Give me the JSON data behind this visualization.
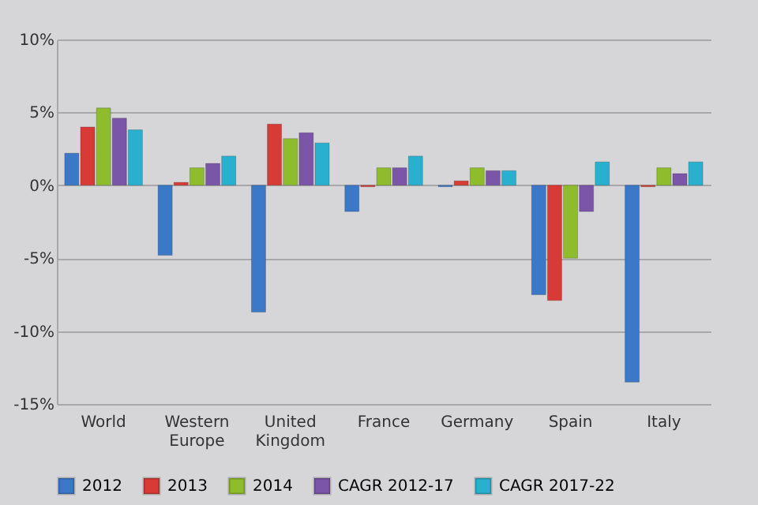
{
  "chart_data": {
    "type": "bar",
    "categories": [
      "World",
      "Western Europe",
      "United Kingdom",
      "France",
      "Germany",
      "Spain",
      "Italy"
    ],
    "series": [
      {
        "name": "2012",
        "color": "#3c78c8",
        "values": [
          2.2,
          -4.8,
          -8.7,
          -1.8,
          -0.1,
          -7.5,
          -13.5
        ]
      },
      {
        "name": "2013",
        "color": "#d83a35",
        "values": [
          4.0,
          0.2,
          4.2,
          -0.1,
          0.3,
          -7.9,
          -0.1
        ]
      },
      {
        "name": "2014",
        "color": "#8fbc2c",
        "values": [
          5.3,
          1.2,
          3.2,
          1.2,
          1.2,
          -5.0,
          1.2
        ]
      },
      {
        "name": "CAGR 2012-17",
        "color": "#7b55a8",
        "values": [
          4.6,
          1.5,
          3.6,
          1.2,
          1.0,
          -1.8,
          0.8
        ]
      },
      {
        "name": "CAGR 2017-22",
        "color": "#2ab0cf",
        "values": [
          3.8,
          2.0,
          2.9,
          2.0,
          1.0,
          1.6,
          1.6
        ]
      }
    ],
    "ylim": [
      -15,
      10
    ],
    "yticks": [
      {
        "value": -15,
        "label": "-15%"
      },
      {
        "value": -10,
        "label": "-10%"
      },
      {
        "value": -5,
        "label": "-5%"
      },
      {
        "value": 0,
        "label": "0%"
      },
      {
        "value": 5,
        "label": "5%"
      },
      {
        "value": 10,
        "label": "10%"
      }
    ],
    "grid": "y",
    "legend": "bottom"
  }
}
